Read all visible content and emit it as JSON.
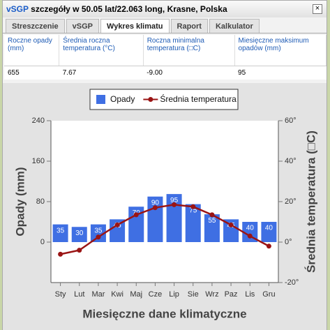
{
  "header": {
    "title_prefix": "vSGP",
    "title": "szczegóły w 50.05 lat/22.063 long, Krasne, Polska",
    "close": "×"
  },
  "tabs": [
    {
      "label": "Streszczenie",
      "active": false
    },
    {
      "label": "vSGP",
      "active": false
    },
    {
      "label": "Wykres klimatu",
      "active": true
    },
    {
      "label": "Raport",
      "active": false
    },
    {
      "label": "Kalkulator",
      "active": false
    }
  ],
  "summary_table": {
    "headers": [
      "Roczne opady (mm)",
      "Średnia roczna temperatura (°C)",
      "Roczna minimalna temperatura (□C)",
      "Miesięczne maksimum opadów (mm)"
    ],
    "rows": [
      [
        "655",
        "7.67",
        "-9.00",
        "95"
      ]
    ]
  },
  "chart_data": {
    "type": "bar",
    "x_label": "Miesięczne dane klimatyczne",
    "y_label": "Opady (mm)",
    "y2_label": "Średnia temperatura (□C)",
    "categories": [
      "Sty",
      "Lut",
      "Mar",
      "Kwi",
      "Maj",
      "Cze",
      "Lip",
      "Sie",
      "Wrz",
      "Paz",
      "Lis",
      "Gru"
    ],
    "series": [
      {
        "name": "Opady",
        "type": "bar",
        "color": "#3f6fe3",
        "values": [
          35,
          30,
          35,
          45,
          70,
          90,
          95,
          75,
          55,
          45,
          40,
          40
        ]
      },
      {
        "name": "Średnia temperatura",
        "type": "line",
        "axis": "y2",
        "color": "#9a1414",
        "values": [
          -6,
          -4,
          2.5,
          8.5,
          13.5,
          17,
          18.5,
          17.5,
          13.5,
          8.5,
          3,
          -2
        ]
      }
    ],
    "ylim": [
      -80,
      240
    ],
    "yticks": [
      0,
      80,
      160,
      240
    ],
    "y2lim": [
      -20,
      60
    ],
    "y2ticks": [
      {
        "value": -20,
        "label": "-20°"
      },
      {
        "value": 0,
        "label": "0°"
      },
      {
        "value": 20,
        "label": "20°"
      },
      {
        "value": 40,
        "label": "40°"
      },
      {
        "value": 60,
        "label": "60°"
      }
    ],
    "legend": "top"
  }
}
